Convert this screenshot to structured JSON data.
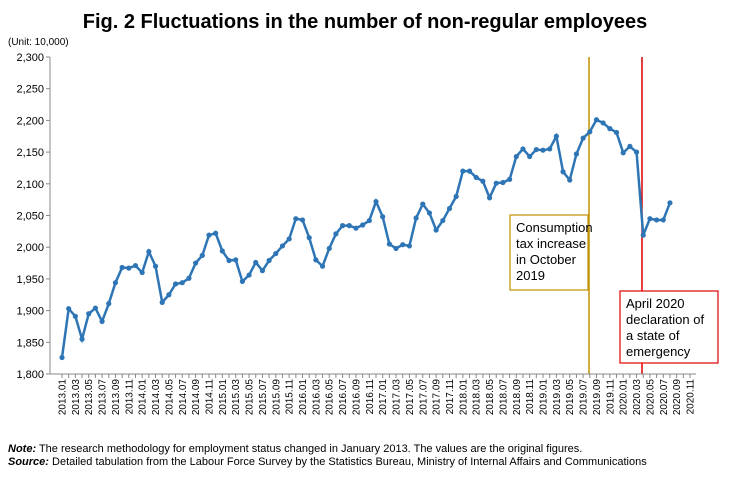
{
  "chart_data": {
    "type": "line",
    "title": "Fig. 2 Fluctuations in the number of non-regular employees",
    "unit_label": "(Unit: 10,000)",
    "categories": [
      "2013.01",
      null,
      "2013.03",
      null,
      "2013.05",
      null,
      "2013.07",
      null,
      "2013.09",
      null,
      "2013.11",
      null,
      "2014.01",
      null,
      "2014.03",
      null,
      "2014.05",
      null,
      "2014.07",
      null,
      "2014.09",
      null,
      "2014.11",
      null,
      "2015.01",
      null,
      "2015.03",
      null,
      "2015.05",
      null,
      "2015.07",
      null,
      "2015.09",
      null,
      "2015.11",
      null,
      "2016.01",
      null,
      "2016.03",
      null,
      "2016.05",
      null,
      "2016.07",
      null,
      "2016.09",
      null,
      "2016.11",
      null,
      "2017.01",
      null,
      "2017.03",
      null,
      "2017.05",
      null,
      "2017.07",
      null,
      "2017.09",
      null,
      "2017.11",
      null,
      "2018.01",
      null,
      "2018.03",
      null,
      "2018.05",
      null,
      "2018.07",
      null,
      "2018.09",
      null,
      "2018.11",
      null,
      "2019.01",
      null,
      "2019.03",
      null,
      "2019.05",
      null,
      "2019.07",
      null,
      "2019.09",
      null,
      "2019.11",
      null,
      "2020.01",
      null,
      "2020.03",
      null,
      "2020.05",
      null,
      "2020.07",
      null,
      "2020.09",
      null,
      "2020.11"
    ],
    "series": [
      {
        "name": "Non-regular employees",
        "color": "#2e75b6",
        "values": [
          1826,
          1903,
          1891,
          1855,
          1895,
          1904,
          1883,
          1911,
          1944,
          1968,
          1967,
          1971,
          1960,
          1993,
          1970,
          1913,
          1925,
          1942,
          1944,
          1951,
          1975,
          1987,
          2019,
          2022,
          1994,
          1979,
          1980,
          1946,
          1956,
          1976,
          1963,
          1979,
          1990,
          2002,
          2013,
          2045,
          2043,
          2015,
          1980,
          1970,
          1998,
          2021,
          2034,
          2034,
          2030,
          2035,
          2042,
          2072,
          2048,
          2005,
          1998,
          2004,
          2002,
          2046,
          2068,
          2054,
          2027,
          2042,
          2061,
          2080,
          2120,
          2120,
          2110,
          2104,
          2078,
          2101,
          2102,
          2107,
          2143,
          2155,
          2143,
          2154,
          2153,
          2155,
          2175,
          2119,
          2106,
          2147,
          2172,
          2182,
          2201,
          2196,
          2187,
          2181,
          2149,
          2159,
          2150,
          2019,
          2045,
          2043,
          2043,
          2070,
          null,
          null,
          null
        ]
      }
    ],
    "ylim": [
      1800,
      2300
    ],
    "yticks": [
      {
        "value": 1800,
        "label": "1,800"
      },
      {
        "value": 1850,
        "label": "1,850"
      },
      {
        "value": 1900,
        "label": "1,900"
      },
      {
        "value": 1950,
        "label": "1,950"
      },
      {
        "value": 2000,
        "label": "2,000"
      },
      {
        "value": 2050,
        "label": "2,050"
      },
      {
        "value": 2100,
        "label": "2,100"
      },
      {
        "value": 2150,
        "label": "2,150"
      },
      {
        "value": 2200,
        "label": "2,200"
      },
      {
        "value": 2250,
        "label": "2,250"
      },
      {
        "value": 2300,
        "label": "2,300"
      }
    ],
    "annotations": [
      {
        "lines": [
          "Consumption",
          "tax increase",
          "in October",
          "2019"
        ],
        "color": "#bf9000"
      },
      {
        "lines": [
          "April 2020",
          "declaration of",
          "a state of",
          "emergency"
        ],
        "color": "#e00000"
      }
    ],
    "notes": [
      {
        "label": "Note:",
        "text": " The research methodology for employment status changed in January 2013. The values are the original figures."
      },
      {
        "label": "Source:",
        "text": " Detailed tabulation from the Labour Force Survey by the Statistics Bureau, Ministry of Internal Affairs and Communications"
      }
    ]
  }
}
